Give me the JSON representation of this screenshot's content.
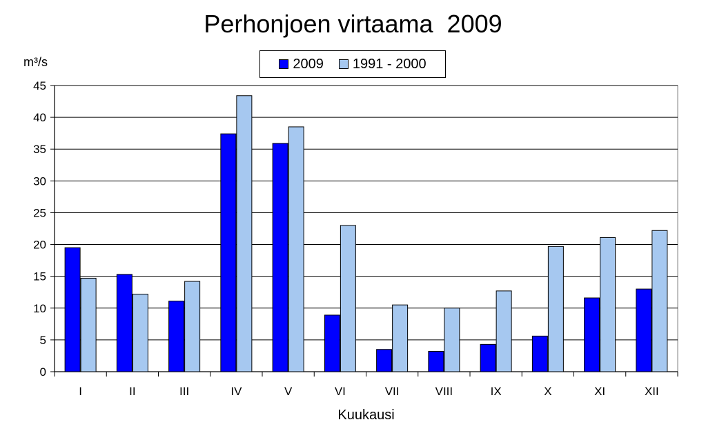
{
  "chart_data": {
    "type": "bar",
    "title": "Perhonjoen virtaama  2009",
    "ylabel": "m³/s",
    "xlabel": "Kuukausi",
    "categories": [
      "I",
      "II",
      "III",
      "IV",
      "V",
      "VI",
      "VII",
      "VIII",
      "IX",
      "X",
      "XI",
      "XII"
    ],
    "ylim": [
      0,
      45
    ],
    "yticks": [
      0,
      5,
      10,
      15,
      20,
      25,
      30,
      35,
      40,
      45
    ],
    "grid": true,
    "legend_position": "top-center",
    "series": [
      {
        "name": "2009",
        "color": "#0000FF",
        "values": [
          19.5,
          15.3,
          11.1,
          37.4,
          35.9,
          8.9,
          3.5,
          3.2,
          4.3,
          5.6,
          11.6,
          13.0
        ]
      },
      {
        "name": "1991 - 2000",
        "color": "#A6C8F0",
        "values": [
          14.7,
          12.2,
          14.2,
          43.4,
          38.5,
          23.0,
          10.5,
          10.0,
          12.7,
          19.7,
          21.1,
          22.2
        ]
      }
    ]
  }
}
